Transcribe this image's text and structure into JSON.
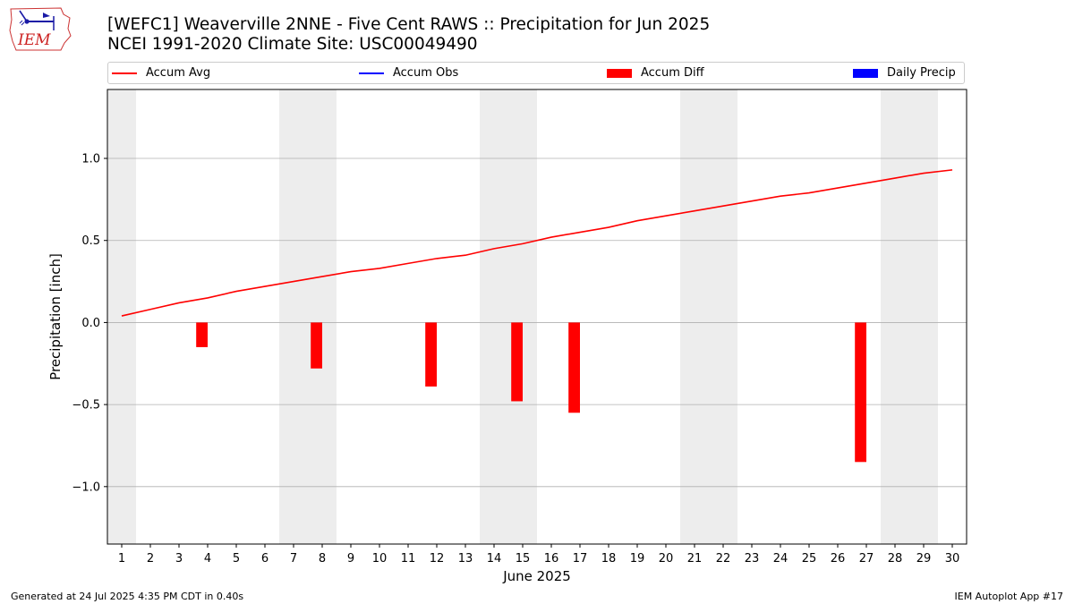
{
  "header": {
    "title_line1": "[WEFC1] Weaverville 2NNE - Five Cent RAWS :: Precipitation for Jun 2025",
    "title_line2": "NCEI 1991-2020 Climate Site: USC00049490"
  },
  "logo": {
    "text": "IEM",
    "icon": "iem-logo-icon"
  },
  "legend": [
    {
      "label": "Accum Avg",
      "kind": "line",
      "color": "#ff0000"
    },
    {
      "label": "Accum Obs",
      "kind": "line",
      "color": "#0000ff"
    },
    {
      "label": "Accum Diff",
      "kind": "box",
      "color": "#ff0000"
    },
    {
      "label": "Daily Precip",
      "kind": "box",
      "color": "#0000ff"
    }
  ],
  "footer": {
    "left": "Generated at 24 Jul 2025 4:35 PM CDT in 0.40s",
    "right": "IEM Autoplot App #17"
  },
  "chart_data": {
    "type": "line",
    "xlabel": "June 2025",
    "ylabel": "Precipitation [inch]",
    "x": [
      1,
      2,
      3,
      4,
      5,
      6,
      7,
      8,
      9,
      10,
      11,
      12,
      13,
      14,
      15,
      16,
      17,
      18,
      19,
      20,
      21,
      22,
      23,
      24,
      25,
      26,
      27,
      28,
      29,
      30
    ],
    "xlim": [
      0.5,
      30.5
    ],
    "ylim": [
      -1.35,
      1.42
    ],
    "yticks": [
      -1.0,
      -0.5,
      0.0,
      0.5,
      1.0
    ],
    "ytick_labels": [
      "−1.0",
      "−0.5",
      "0.0",
      "0.5",
      "1.0"
    ],
    "grid": "horizontal",
    "weekend_bands": [
      [
        0.5,
        1.5
      ],
      [
        6.5,
        8.5
      ],
      [
        13.5,
        15.5
      ],
      [
        20.5,
        22.5
      ],
      [
        27.5,
        29.5
      ]
    ],
    "series": [
      {
        "name": "Accum Avg",
        "type": "line",
        "color": "#ff0000",
        "values": [
          0.04,
          0.08,
          0.12,
          0.15,
          0.19,
          0.22,
          0.25,
          0.28,
          0.31,
          0.33,
          0.36,
          0.39,
          0.41,
          0.45,
          0.48,
          0.52,
          0.55,
          0.58,
          0.62,
          0.65,
          0.68,
          0.71,
          0.74,
          0.77,
          0.79,
          0.82,
          0.85,
          0.88,
          0.91,
          0.93
        ]
      },
      {
        "name": "Accum Diff",
        "type": "bar",
        "color": "#ff0000",
        "points": [
          {
            "x": 4,
            "y": -0.15
          },
          {
            "x": 8,
            "y": -0.28
          },
          {
            "x": 12,
            "y": -0.39
          },
          {
            "x": 15,
            "y": -0.48
          },
          {
            "x": 17,
            "y": -0.55
          },
          {
            "x": 27,
            "y": -0.85
          }
        ]
      }
    ]
  }
}
